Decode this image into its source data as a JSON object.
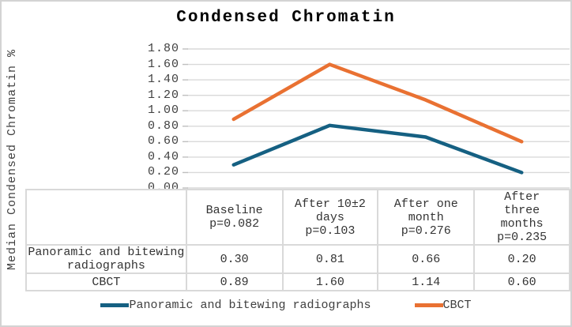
{
  "chart_data": {
    "type": "line",
    "title": "Condensed Chromatin",
    "ylabel": "Median Condensed Chromatin %",
    "xlabel": "",
    "ylim": [
      0,
      1.8
    ],
    "ytick_step": 0.2,
    "y_ticks": [
      "1.80",
      "1.60",
      "1.40",
      "1.20",
      "1.00",
      "0.80",
      "0.60",
      "0.40",
      "0.20",
      "0.00"
    ],
    "categories": [
      "Baseline p=0.082",
      "After 10±2 days p=0.103",
      "After one month p=0.276",
      "After three months p=0.235"
    ],
    "series": [
      {
        "name": "Panoramic and bitewing radiographs",
        "color": "#156082",
        "values": [
          0.3,
          0.81,
          0.66,
          0.2
        ]
      },
      {
        "name": "CBCT",
        "color": "#E97132",
        "values": [
          0.89,
          1.6,
          1.14,
          0.6
        ]
      }
    ],
    "grid": true,
    "legend_position": "bottom",
    "data_table_shown": true
  },
  "table": {
    "headers": [
      "Baseline\np=0.082",
      "After 10±2\ndays\np=0.103",
      "After one\nmonth\np=0.276",
      "After\nthree\nmonths\np=0.235"
    ],
    "rows": [
      {
        "label": "Panoramic and bitewing\nradiographs",
        "values": [
          "0.30",
          "0.81",
          "0.66",
          "0.20"
        ]
      },
      {
        "label": "CBCT",
        "values": [
          "0.89",
          "1.60",
          "1.14",
          "0.60"
        ]
      }
    ]
  },
  "colors": {
    "grid": "#D9D9D9",
    "tick_mark": "#BFBFBF",
    "table_border": "#D9D9D9",
    "outer_border": "#D3D3D3",
    "axis_text": "#404040"
  }
}
